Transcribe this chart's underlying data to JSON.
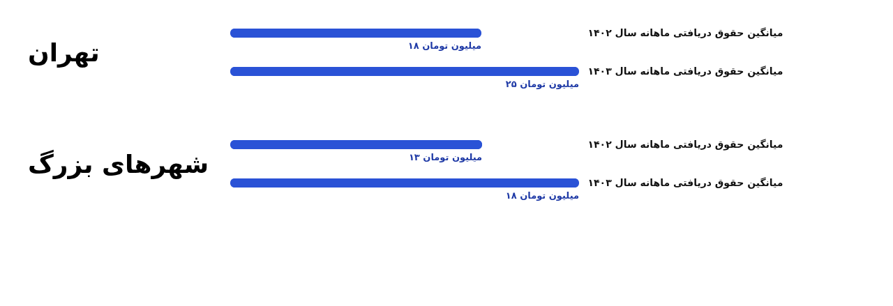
{
  "chart_data": [
    {
      "type": "bar",
      "orientation": "horizontal",
      "title": "تهران",
      "tick_labels": "y",
      "grid": false,
      "categories": [
        "میانگین حقوق دریافتی ماهانه سال ۱۴۰۲",
        "میانگین حقوق دریافتی ماهانه سال ۱۴۰۳"
      ],
      "values": [
        18,
        25
      ],
      "value_labels": [
        "۱۸ میلیون تومان",
        "۲۵ میلیون تومان"
      ],
      "color": "#2a52d6"
    },
    {
      "type": "bar",
      "orientation": "horizontal",
      "title": "شهرهای بزرگ",
      "tick_labels": "y",
      "grid": false,
      "categories": [
        "میانگین حقوق دریافتی ماهانه سال ۱۴۰۲",
        "میانگین حقوق دریافتی ماهانه سال ۱۴۰۳"
      ],
      "values": [
        13,
        18
      ],
      "value_labels": [
        "۱۳ میلیون تومان",
        "۱۸ میلیون تومان"
      ],
      "color": "#2a52d6"
    }
  ]
}
